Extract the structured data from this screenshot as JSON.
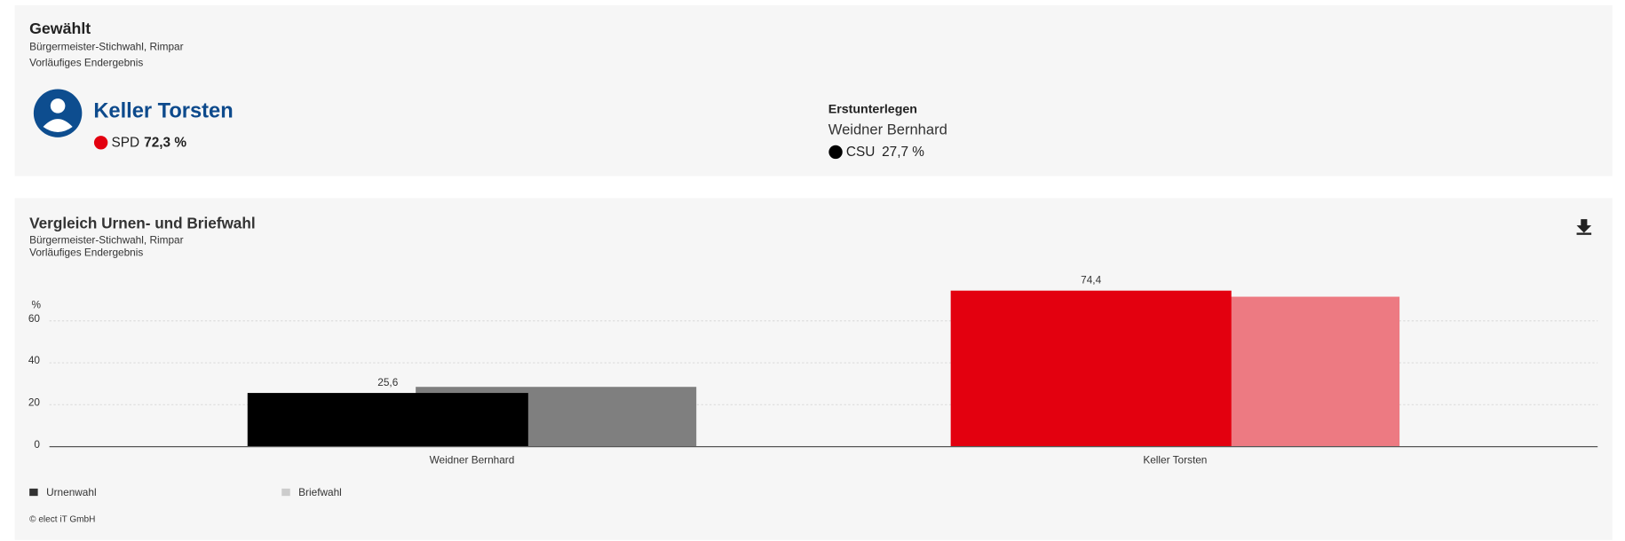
{
  "header": {
    "title": "Gewählt",
    "subtitle": "Bürgermeister-Stichwahl, Rimpar",
    "status": "Vorläufiges Endergebnis"
  },
  "winner": {
    "name": "Keller Torsten",
    "party": "SPD",
    "party_color": "#e3000f",
    "percent": "72,3 %"
  },
  "runner_up": {
    "label": "Erstunterlegen",
    "name": "Weidner Bernhard",
    "party": "CSU",
    "party_color": "#000000",
    "percent": "27,7 %"
  },
  "chart_data": {
    "type": "bar",
    "title": "Vergleich Urnen- und Briefwahl",
    "subtitle": "Bürgermeister-Stichwahl, Rimpar",
    "note": "Vorläufiges Endergebnis",
    "y_label": "%",
    "categories": [
      "Weidner Bernhard",
      "Keller Torsten"
    ],
    "series": [
      {
        "name": "Urnenwahl",
        "color": "#333333",
        "point_colors": [
          "#000000",
          "#e3000f"
        ],
        "values": [
          25.6,
          74.4
        ],
        "value_labels": [
          "25,6",
          "74,4"
        ]
      },
      {
        "name": "Briefwahl",
        "color": "#cccccc",
        "point_colors": [
          "#7f7f7f",
          "#ed7a82"
        ],
        "values": [
          28.5,
          71.5
        ]
      }
    ],
    "ylim": [
      0,
      80
    ],
    "yticks": [
      0,
      20,
      40,
      60
    ],
    "grid": true,
    "source": "© elect iT GmbH"
  }
}
